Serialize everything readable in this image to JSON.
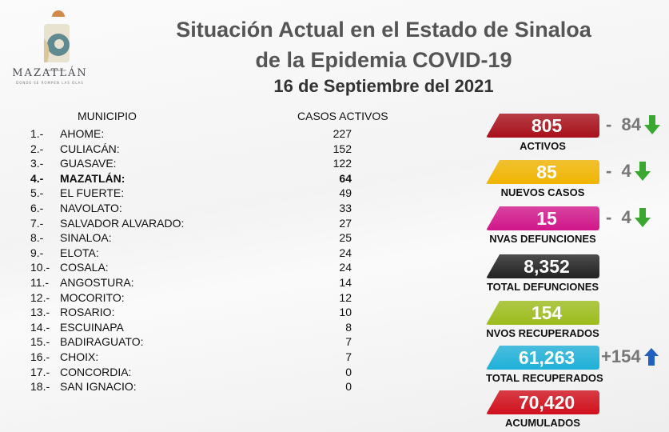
{
  "logo": {
    "name": "MAZATLÁN",
    "tagline": "DONDE SE ROMPEN LAS OLAS"
  },
  "title": {
    "line1": "Situación Actual en el Estado de Sinaloa",
    "line2": "de la Epidemia COVID-19",
    "date": "16 de Septiembre del 2021"
  },
  "table": {
    "headers": {
      "municipio": "MUNICIPIO",
      "casos": "CASOS ACTIVOS"
    },
    "rows": [
      {
        "idx": "1.-",
        "name": "AHOME:",
        "value": "227"
      },
      {
        "idx": "2.-",
        "name": "CULIACÁN:",
        "value": "152"
      },
      {
        "idx": "3.-",
        "name": "GUASAVE:",
        "value": "122"
      },
      {
        "idx": "4.-",
        "name": "MAZATLÁN:",
        "value": "64"
      },
      {
        "idx": "5.-",
        "name": "EL FUERTE:",
        "value": "49"
      },
      {
        "idx": "6.-",
        "name": "NAVOLATO:",
        "value": "33"
      },
      {
        "idx": "7.-",
        "name": "SALVADOR ALVARADO:",
        "value": "27"
      },
      {
        "idx": "8.-",
        "name": "SINALOA:",
        "value": "25"
      },
      {
        "idx": "9.-",
        "name": "ELOTA:",
        "value": "24"
      },
      {
        "idx": "10.-",
        "name": "COSALA:",
        "value": "24"
      },
      {
        "idx": "11.-",
        "name": "ANGOSTURA:",
        "value": "14"
      },
      {
        "idx": "12.-",
        "name": "MOCORITO:",
        "value": "12"
      },
      {
        "idx": "13.-",
        "name": "ROSARIO:",
        "value": "10"
      },
      {
        "idx": "14.-",
        "name": "ESCUINAPA",
        "value": "8"
      },
      {
        "idx": "15.-",
        "name": "BADIRAGUATO:",
        "value": "7"
      },
      {
        "idx": "16.-",
        "name": "CHOIX:",
        "value": "7"
      },
      {
        "idx": "17.-",
        "name": "CONCORDIA:",
        "value": "0"
      },
      {
        "idx": "18.-",
        "name": "SAN IGNACIO:",
        "value": "0"
      }
    ]
  },
  "stats": [
    {
      "value": "805",
      "label": "ACTIVOS",
      "color": "#a8101a",
      "delta": "-  84",
      "trend": "down"
    },
    {
      "value": "85",
      "label": "NUEVOS CASOS",
      "color": "#f0b400",
      "delta": "-  4",
      "trend": "down"
    },
    {
      "value": "15",
      "label": "NVAS DEFUNCIONES",
      "color": "#d0168a",
      "delta": "-  4",
      "trend": "down"
    },
    {
      "value": "8,352",
      "label": "TOTAL DEFUNCIONES",
      "color": "#222222"
    },
    {
      "value": "154",
      "label": "NVOS RECUPERADOS",
      "color": "#9cbc1c"
    },
    {
      "value": "61,263",
      "label": "TOTAL RECUPERADOS",
      "color": "#1fb0d8",
      "delta": "+154",
      "trend": "up"
    },
    {
      "value": "70,420",
      "label": "ACUMULADOS",
      "color": "#d0101c"
    }
  ],
  "colors": {
    "trend_down": "#3aa830",
    "trend_up": "#2060c0"
  }
}
